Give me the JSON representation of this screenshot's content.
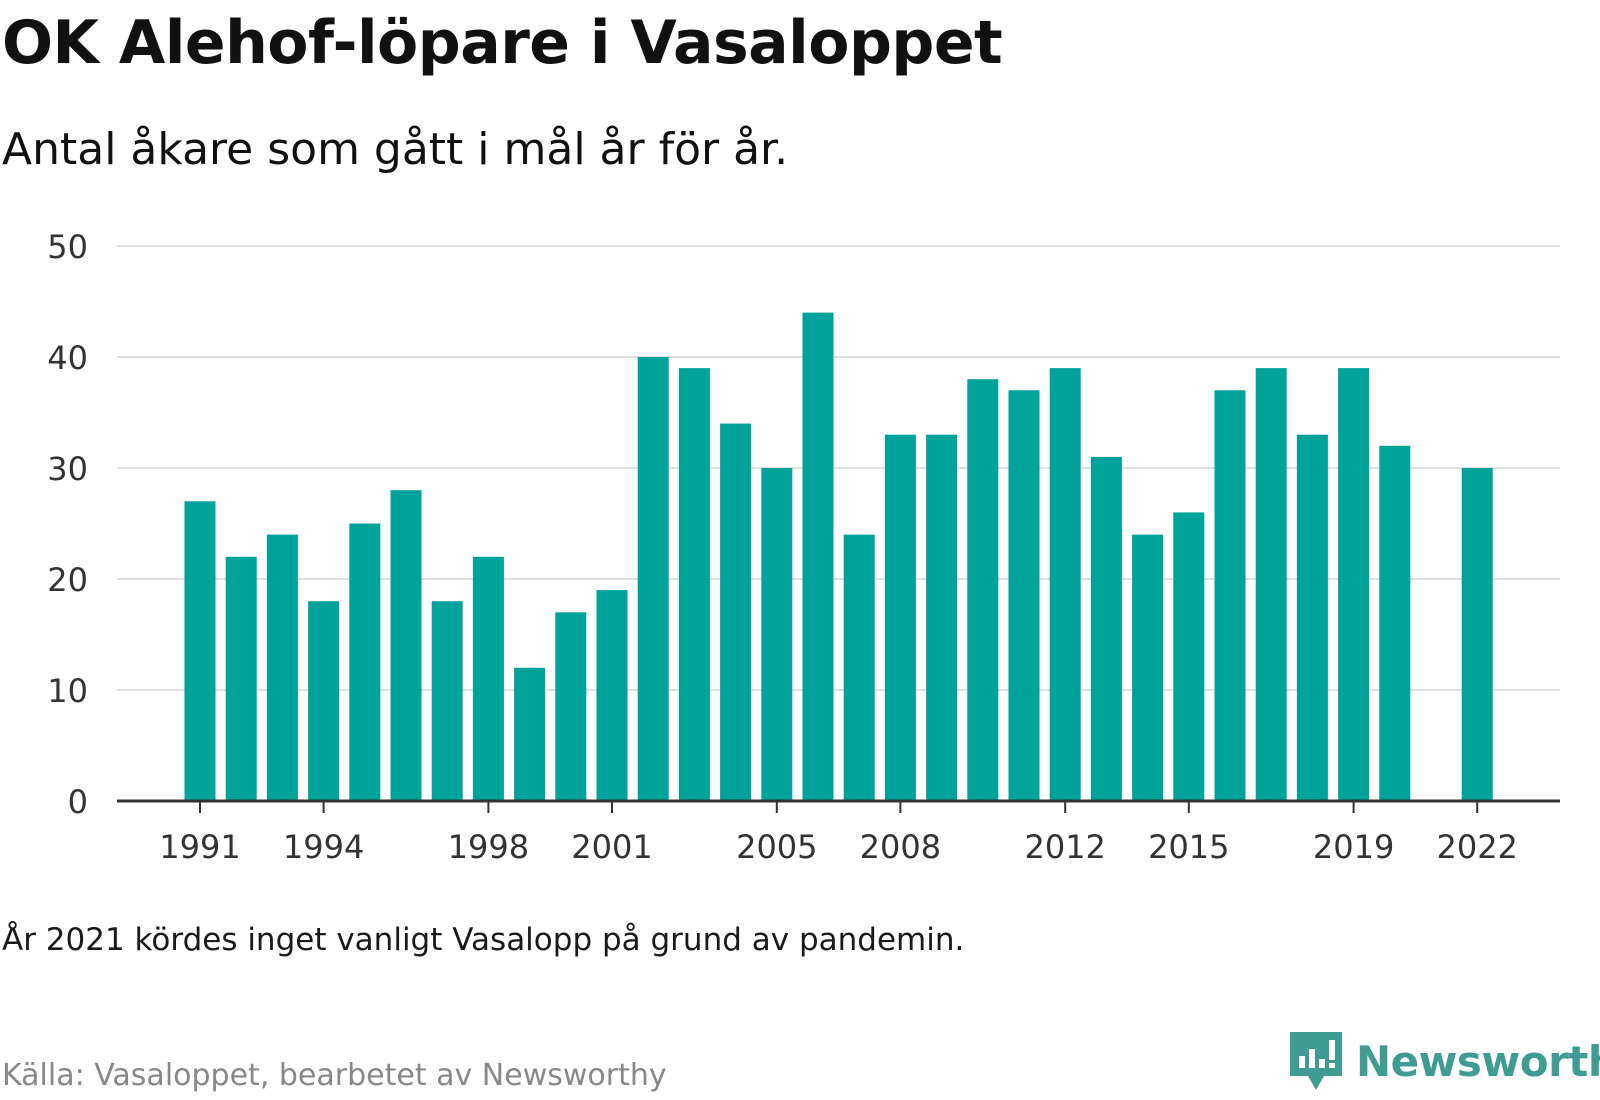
{
  "title": "OK Alehof-löpare i Vasaloppet",
  "subtitle": "Antal åkare som gått i mål år för år.",
  "note": "År 2021 kördes inget vanligt Vasalopp på grund av pandemin.",
  "source": "Källa: Vasaloppet, bearbetet av Newsworthy",
  "brand": {
    "name": "Newsworthy",
    "icon": "newsworthy-logo-icon",
    "color": "#3f9c93"
  },
  "colors": {
    "bar": "#00a39a",
    "grid": "#e0e0e0",
    "axis": "#333333"
  },
  "chart_data": {
    "type": "bar",
    "categories": [
      1991,
      1992,
      1993,
      1994,
      1995,
      1996,
      1997,
      1998,
      1999,
      2000,
      2001,
      2002,
      2003,
      2004,
      2005,
      2006,
      2007,
      2008,
      2009,
      2010,
      2011,
      2012,
      2013,
      2014,
      2015,
      2016,
      2017,
      2018,
      2019,
      2020,
      2021,
      2022
    ],
    "values": [
      27,
      22,
      24,
      18,
      25,
      28,
      18,
      22,
      12,
      17,
      19,
      40,
      39,
      34,
      30,
      44,
      24,
      33,
      33,
      38,
      37,
      39,
      31,
      24,
      26,
      37,
      39,
      33,
      39,
      32,
      null,
      30
    ],
    "x_tick_labels": [
      "1991",
      "1994",
      "1998",
      "2001",
      "2005",
      "2008",
      "2012",
      "2015",
      "2019",
      "2022"
    ],
    "y_ticks": [
      0,
      10,
      20,
      30,
      40,
      50
    ],
    "ylim": [
      0,
      50
    ],
    "grid": true,
    "legend": "none"
  }
}
